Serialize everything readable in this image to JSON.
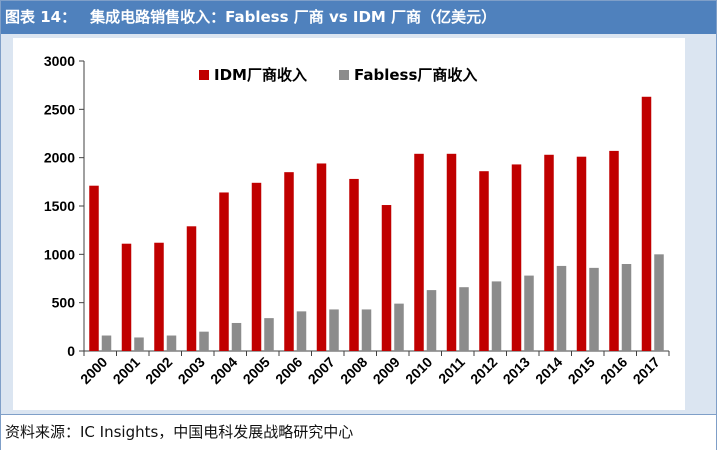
{
  "header": {
    "figure_label": "图表 14：",
    "title": "集成电路销售收入：Fabless 厂商 vs IDM 厂商（亿美元）"
  },
  "footer": {
    "source": "资料来源：IC Insights，中国电科发展战略研究中心"
  },
  "colors": {
    "title_bar": "#4f81bd",
    "panel_background": "#dbe5f1",
    "idm": "#c00000",
    "fabless": "#8c8c8c"
  },
  "chart_data": {
    "type": "bar",
    "categories": [
      "2000",
      "2001",
      "2002",
      "2003",
      "2004",
      "2005",
      "2006",
      "2007",
      "2008",
      "2009",
      "2010",
      "2011",
      "2012",
      "2013",
      "2014",
      "2015",
      "2016",
      "2017"
    ],
    "series": [
      {
        "name": "IDM厂商收入",
        "color": "#c00000",
        "values": [
          1710,
          1110,
          1120,
          1290,
          1640,
          1740,
          1850,
          1940,
          1780,
          1510,
          2040,
          2040,
          1860,
          1930,
          2030,
          2010,
          2070,
          2630
        ]
      },
      {
        "name": "Fabless厂商收入",
        "color": "#8c8c8c",
        "values": [
          160,
          140,
          160,
          200,
          290,
          340,
          410,
          430,
          430,
          490,
          630,
          660,
          720,
          780,
          880,
          860,
          900,
          1000
        ]
      }
    ],
    "yticks": [
      0,
      500,
      1000,
      1500,
      2000,
      2500,
      3000
    ],
    "ylim": [
      0,
      3000
    ],
    "legend": "top-center",
    "grid": false,
    "xlabel": "",
    "ylabel": ""
  }
}
